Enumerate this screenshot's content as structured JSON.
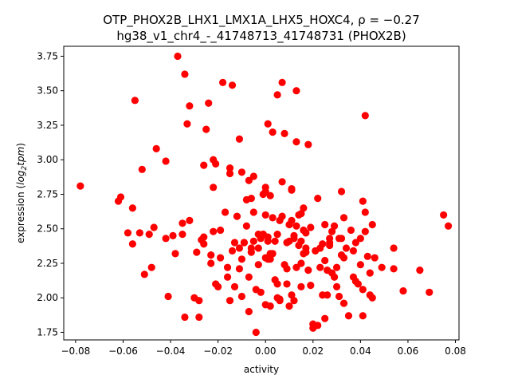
{
  "chart_data": {
    "type": "scatter",
    "title": "OTP_PHOX2B_LHX1_LMX1A_LHX5_HOXC4, ρ = −0.27",
    "subtitle": "hg38_v1_chr4_-_41748713_41748731 (PHOX2B)",
    "xlabel": "activity",
    "ylabel_prefix": "expression (",
    "ylabel_math": "log",
    "ylabel_sub": "2",
    "ylabel_tail": "tpm",
    "ylabel_suffix": ")",
    "xlim": [
      -0.085,
      0.0815
    ],
    "ylim": [
      1.695,
      3.822
    ],
    "xticks": [
      -0.08,
      -0.06,
      -0.04,
      -0.02,
      0.0,
      0.02,
      0.04,
      0.06,
      0.08
    ],
    "xtick_labels": [
      "−0.08",
      "−0.06",
      "−0.04",
      "−0.02",
      "0.00",
      "0.02",
      "0.04",
      "0.06",
      "0.08"
    ],
    "yticks": [
      1.75,
      2.0,
      2.25,
      2.5,
      2.75,
      3.0,
      3.25,
      3.5,
      3.75
    ],
    "ytick_labels": [
      "1.75",
      "2.00",
      "2.25",
      "2.50",
      "2.75",
      "3.00",
      "3.25",
      "3.50",
      "3.75"
    ],
    "marker_color": "#ff0000",
    "grid": false,
    "points": [
      [
        -0.078,
        2.81
      ],
      [
        -0.062,
        2.7
      ],
      [
        -0.061,
        2.73
      ],
      [
        -0.058,
        2.47
      ],
      [
        -0.056,
        2.39
      ],
      [
        -0.056,
        2.65
      ],
      [
        -0.055,
        3.43
      ],
      [
        -0.053,
        2.47
      ],
      [
        -0.052,
        2.93
      ],
      [
        -0.051,
        2.17
      ],
      [
        -0.049,
        2.46
      ],
      [
        -0.048,
        2.22
      ],
      [
        -0.047,
        2.51
      ],
      [
        -0.046,
        3.08
      ],
      [
        -0.042,
        2.43
      ],
      [
        -0.042,
        2.99
      ],
      [
        -0.041,
        2.01
      ],
      [
        -0.039,
        2.45
      ],
      [
        -0.038,
        2.32
      ],
      [
        -0.037,
        3.75
      ],
      [
        -0.035,
        2.46
      ],
      [
        -0.035,
        2.54
      ],
      [
        -0.034,
        3.62
      ],
      [
        -0.034,
        1.86
      ],
      [
        -0.033,
        3.26
      ],
      [
        -0.032,
        3.39
      ],
      [
        -0.032,
        2.56
      ],
      [
        -0.03,
        2.0
      ],
      [
        -0.029,
        2.33
      ],
      [
        -0.028,
        1.98
      ],
      [
        -0.028,
        1.86
      ],
      [
        -0.027,
        2.42
      ],
      [
        -0.026,
        2.39
      ],
      [
        -0.026,
        2.96
      ],
      [
        -0.026,
        2.44
      ],
      [
        -0.025,
        3.22
      ],
      [
        -0.024,
        3.41
      ],
      [
        -0.023,
        2.25
      ],
      [
        -0.023,
        2.31
      ],
      [
        -0.022,
        3.0
      ],
      [
        -0.022,
        2.48
      ],
      [
        -0.022,
        2.8
      ],
      [
        -0.021,
        2.97
      ],
      [
        -0.021,
        2.1
      ],
      [
        -0.02,
        2.08
      ],
      [
        -0.019,
        2.49
      ],
      [
        -0.019,
        2.29
      ],
      [
        -0.018,
        3.56
      ],
      [
        -0.017,
        2.62
      ],
      [
        -0.016,
        2.22
      ],
      [
        -0.016,
        2.15
      ],
      [
        -0.015,
        1.98
      ],
      [
        -0.015,
        2.94
      ],
      [
        -0.015,
        2.9
      ],
      [
        -0.014,
        3.54
      ],
      [
        -0.014,
        2.34
      ],
      [
        -0.013,
        2.4
      ],
      [
        -0.013,
        2.08
      ],
      [
        -0.012,
        2.59
      ],
      [
        -0.011,
        2.36
      ],
      [
        -0.011,
        2.21
      ],
      [
        -0.011,
        3.15
      ],
      [
        -0.01,
        2.91
      ],
      [
        -0.01,
        2.28
      ],
      [
        -0.01,
        2.01
      ],
      [
        -0.009,
        2.4
      ],
      [
        -0.009,
        2.4
      ],
      [
        -0.008,
        2.52
      ],
      [
        -0.008,
        2.71
      ],
      [
        -0.007,
        2.15
      ],
      [
        -0.007,
        2.85
      ],
      [
        -0.007,
        1.9
      ],
      [
        -0.006,
        2.36
      ],
      [
        -0.006,
        2.33
      ],
      [
        -0.006,
        2.72
      ],
      [
        -0.005,
        2.41
      ],
      [
        -0.005,
        2.62
      ],
      [
        -0.005,
        2.88
      ],
      [
        -0.004,
        2.06
      ],
      [
        -0.004,
        1.75
      ],
      [
        -0.003,
        2.46
      ],
      [
        -0.003,
        2.36
      ],
      [
        -0.003,
        2.24
      ],
      [
        -0.002,
        2.43
      ],
      [
        -0.002,
        2.04
      ],
      [
        -0.001,
        2.46
      ],
      [
        -0.001,
        2.75
      ],
      [
        -0.001,
        2.46
      ],
      [
        0.0,
        2.77
      ],
      [
        0.0,
        2.8
      ],
      [
        0.0,
        2.6
      ],
      [
        0.0,
        2.29
      ],
      [
        0.0,
        1.95
      ],
      [
        0.001,
        2.41
      ],
      [
        0.001,
        2.28
      ],
      [
        0.001,
        2.44
      ],
      [
        0.001,
        3.26
      ],
      [
        0.002,
        2.28
      ],
      [
        0.002,
        2.31
      ],
      [
        0.002,
        2.32
      ],
      [
        0.002,
        1.94
      ],
      [
        0.002,
        2.74
      ],
      [
        0.003,
        2.32
      ],
      [
        0.003,
        3.2
      ],
      [
        0.003,
        2.58
      ],
      [
        0.004,
        2.41
      ],
      [
        0.004,
        2.13
      ],
      [
        0.005,
        3.47
      ],
      [
        0.005,
        2.1
      ],
      [
        0.005,
        2.46
      ],
      [
        0.005,
        2.0
      ],
      [
        0.006,
        1.98
      ],
      [
        0.006,
        1.99
      ],
      [
        0.006,
        2.56
      ],
      [
        0.007,
        2.59
      ],
      [
        0.007,
        2.84
      ],
      [
        0.007,
        3.56
      ],
      [
        0.008,
        2.24
      ],
      [
        0.008,
        3.19
      ],
      [
        0.009,
        2.1
      ],
      [
        0.009,
        2.4
      ],
      [
        0.009,
        2.21
      ],
      [
        0.01,
        2.53
      ],
      [
        0.01,
        1.94
      ],
      [
        0.01,
        2.41
      ],
      [
        0.011,
        2.02
      ],
      [
        0.011,
        2.56
      ],
      [
        0.011,
        2.78
      ],
      [
        0.011,
        2.79
      ],
      [
        0.012,
        2.43
      ],
      [
        0.012,
        2.45
      ],
      [
        0.012,
        1.98
      ],
      [
        0.013,
        3.13
      ],
      [
        0.013,
        2.52
      ],
      [
        0.013,
        3.5
      ],
      [
        0.013,
        2.22
      ],
      [
        0.014,
        2.6
      ],
      [
        0.014,
        2.38
      ],
      [
        0.015,
        2.61
      ],
      [
        0.015,
        2.25
      ],
      [
        0.015,
        2.41
      ],
      [
        0.015,
        2.08
      ],
      [
        0.016,
        2.65
      ],
      [
        0.016,
        2.49
      ],
      [
        0.016,
        2.32
      ],
      [
        0.017,
        2.36
      ],
      [
        0.017,
        2.47
      ],
      [
        0.017,
        2.33
      ],
      [
        0.018,
        3.11
      ],
      [
        0.018,
        2.2
      ],
      [
        0.019,
        2.51
      ],
      [
        0.019,
        2.09
      ],
      [
        0.02,
        1.81
      ],
      [
        0.02,
        1.78
      ],
      [
        0.021,
        2.34
      ],
      [
        0.022,
        2.72
      ],
      [
        0.022,
        1.8
      ],
      [
        0.023,
        2.36
      ],
      [
        0.023,
        2.22
      ],
      [
        0.024,
        2.39
      ],
      [
        0.024,
        2.02
      ],
      [
        0.025,
        2.27
      ],
      [
        0.025,
        1.85
      ],
      [
        0.025,
        2.53
      ],
      [
        0.026,
        2.2
      ],
      [
        0.026,
        2.02
      ],
      [
        0.027,
        2.43
      ],
      [
        0.027,
        2.4
      ],
      [
        0.027,
        2.38
      ],
      [
        0.028,
        2.18
      ],
      [
        0.028,
        2.48
      ],
      [
        0.029,
        2.52
      ],
      [
        0.029,
        2.15
      ],
      [
        0.03,
        2.08
      ],
      [
        0.03,
        2.22
      ],
      [
        0.031,
        2.43
      ],
      [
        0.031,
        2.01
      ],
      [
        0.032,
        2.31
      ],
      [
        0.032,
        2.43
      ],
      [
        0.032,
        2.77
      ],
      [
        0.033,
        2.58
      ],
      [
        0.033,
        1.96
      ],
      [
        0.033,
        2.29
      ],
      [
        0.034,
        2.36
      ],
      [
        0.035,
        1.87
      ],
      [
        0.036,
        2.49
      ],
      [
        0.037,
        2.15
      ],
      [
        0.037,
        2.34
      ],
      [
        0.038,
        2.12
      ],
      [
        0.038,
        2.4
      ],
      [
        0.039,
        2.1
      ],
      [
        0.04,
        2.43
      ],
      [
        0.04,
        2.24
      ],
      [
        0.041,
        2.7
      ],
      [
        0.041,
        2.06
      ],
      [
        0.041,
        1.87
      ],
      [
        0.042,
        3.32
      ],
      [
        0.042,
        2.62
      ],
      [
        0.042,
        2.48
      ],
      [
        0.043,
        2.3
      ],
      [
        0.044,
        2.18
      ],
      [
        0.044,
        2.02
      ],
      [
        0.045,
        2.0
      ],
      [
        0.045,
        2.53
      ],
      [
        0.046,
        2.29
      ],
      [
        0.049,
        2.22
      ],
      [
        0.054,
        2.36
      ],
      [
        0.054,
        2.21
      ],
      [
        0.058,
        2.05
      ],
      [
        0.065,
        2.2
      ],
      [
        0.069,
        2.04
      ],
      [
        0.075,
        2.6
      ],
      [
        0.077,
        2.52
      ]
    ]
  }
}
